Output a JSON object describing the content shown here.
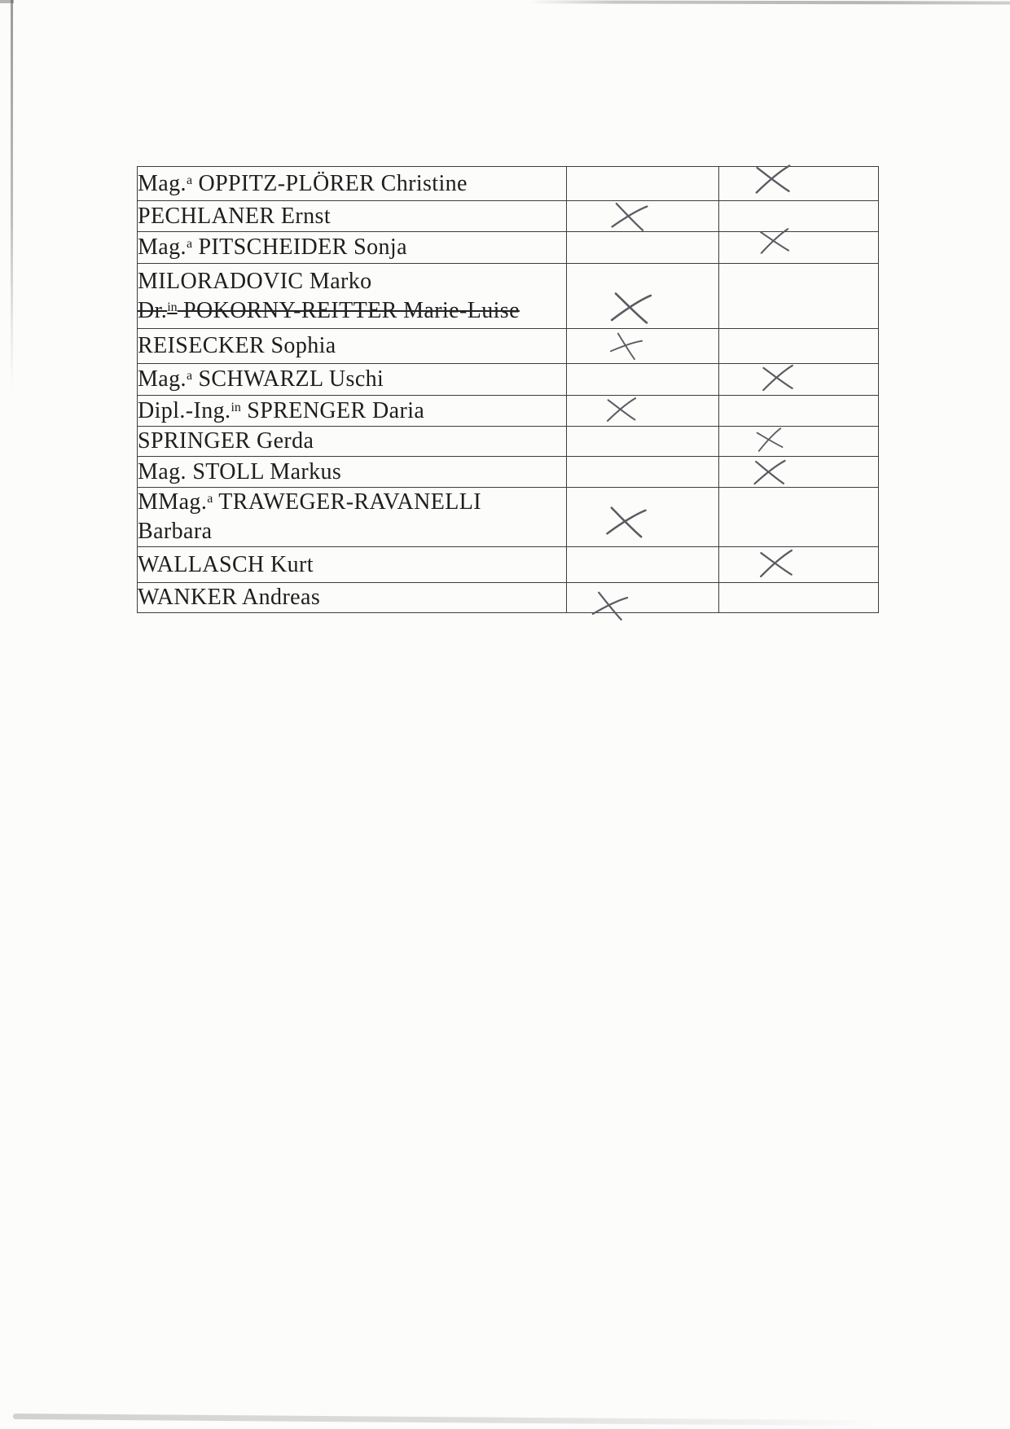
{
  "page": {
    "kind": "scanned attendance list page",
    "mark_glyph": "handwritten-x"
  },
  "colors": {
    "paper": "#fcfcfb",
    "ink": "#1e1e1e",
    "table_border": "#3d3d3f",
    "pen": "#5b5b62"
  },
  "table": {
    "columns": [
      "name",
      "mark-a",
      "mark-b"
    ],
    "rows": [
      {
        "mark": "col3",
        "lines": [
          [
            {
              "t": "Mag."
            },
            {
              "t": "a",
              "sup": true
            },
            {
              "t": " OPPITZ-PLÖRER Christine"
            }
          ]
        ]
      },
      {
        "mark": "col2",
        "lines": [
          [
            {
              "t": "PECHLANER Ernst"
            }
          ]
        ]
      },
      {
        "mark": "col3",
        "lines": [
          [
            {
              "t": "Mag."
            },
            {
              "t": "a",
              "sup": true
            },
            {
              "t": " PITSCHEIDER Sonja"
            }
          ]
        ]
      },
      {
        "mark": "col2",
        "lines": [
          [
            {
              "t": "MILORADOVIC Marko"
            }
          ],
          [
            {
              "t": "Dr.",
              "strike": true
            },
            {
              "t": "in",
              "sup": true,
              "strike": true
            },
            {
              "t": " POKORNY-REITTER Marie-Luise",
              "strike": true
            }
          ]
        ]
      },
      {
        "mark": "col2",
        "lines": [
          [
            {
              "t": "REISECKER Sophia"
            }
          ]
        ]
      },
      {
        "mark": "col3",
        "lines": [
          [
            {
              "t": "Mag."
            },
            {
              "t": "a",
              "sup": true
            },
            {
              "t": " SCHWARZL Uschi"
            }
          ]
        ]
      },
      {
        "mark": "col2",
        "lines": [
          [
            {
              "t": "Dipl.-Ing."
            },
            {
              "t": "in",
              "sup": true
            },
            {
              "t": " SPRENGER Daria"
            }
          ]
        ]
      },
      {
        "mark": "col3",
        "lines": [
          [
            {
              "t": "SPRINGER Gerda"
            }
          ]
        ]
      },
      {
        "mark": "col3",
        "lines": [
          [
            {
              "t": "Mag. STOLL Markus"
            }
          ]
        ]
      },
      {
        "mark": "col2",
        "lines": [
          [
            {
              "t": "MMag."
            },
            {
              "t": "a",
              "sup": true
            },
            {
              "t": " TRAWEGER-RAVANELLI"
            }
          ],
          [
            {
              "t": "Barbara"
            }
          ]
        ]
      },
      {
        "mark": "col3",
        "lines": [
          [
            {
              "t": "WALLASCH Kurt"
            }
          ]
        ]
      },
      {
        "mark": "col2",
        "lines": [
          [
            {
              "t": "WANKER Andreas"
            }
          ]
        ]
      }
    ]
  }
}
